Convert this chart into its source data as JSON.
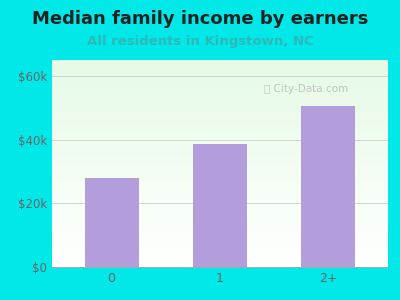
{
  "title": "Median family income by earners",
  "subtitle": "All residents in Kingstown, NC",
  "categories": [
    "0",
    "1",
    "2+"
  ],
  "values": [
    28000,
    38500,
    50500
  ],
  "bar_color": "#b39ddb",
  "yticks": [
    0,
    20000,
    40000,
    60000
  ],
  "ytick_labels": [
    "$0",
    "$20k",
    "$40k",
    "$60k"
  ],
  "ylim": [
    0,
    65000
  ],
  "title_fontsize": 13,
  "subtitle_fontsize": 9.5,
  "title_color": "#222222",
  "subtitle_color": "#2eb8b8",
  "background_color": "#00e8e8",
  "tick_color": "#666666",
  "watermark": "City-Data.com",
  "grid_color": "#cccccc",
  "xlim": [
    -0.55,
    2.55
  ]
}
